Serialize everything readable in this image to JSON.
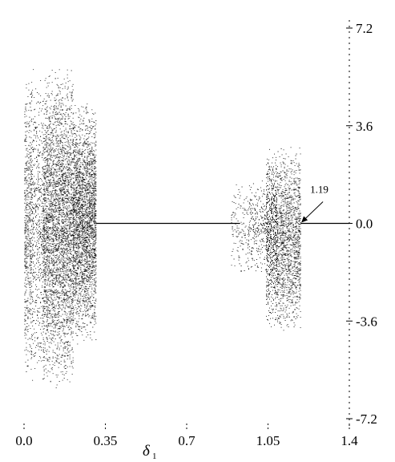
{
  "chart_data": {
    "type": "scatter",
    "title": "",
    "xlabel": "δ",
    "xlabel_subscript": "1",
    "ylabel": "",
    "xlim": [
      0.0,
      1.4
    ],
    "ylim": [
      -7.2,
      7.2
    ],
    "x_ticks": [
      0.0,
      0.35,
      0.7,
      1.05,
      1.4
    ],
    "x_tick_labels": [
      "0.0",
      "0.35",
      "0.7",
      "1.05",
      "1.4"
    ],
    "y_ticks": [
      7.2,
      3.6,
      0.0,
      -3.6,
      -7.2
    ],
    "y_tick_labels": [
      "7.2",
      "3.6",
      "0.0",
      "-3.6",
      "-7.2"
    ],
    "y_axis_side": "right",
    "grid": false,
    "legend": "none",
    "annotations": [
      {
        "text": "1.19",
        "x": 1.19,
        "y": 0.0
      }
    ],
    "series": [
      {
        "color": "#000000",
        "regions": [
          {
            "x_start": 0.0,
            "x_end": 0.03,
            "y_min": -5.9,
            "y_max": 5.6,
            "density": 0.5
          },
          {
            "x_start": 0.03,
            "x_end": 0.08,
            "y_min": -6.0,
            "y_max": 5.8,
            "density": 0.3
          },
          {
            "x_start": 0.08,
            "x_end": 0.21,
            "y_min": -6.2,
            "y_max": 5.8,
            "density": 0.65
          },
          {
            "x_start": 0.21,
            "x_end": 0.31,
            "y_min": -4.5,
            "y_max": 4.5,
            "density": 0.9
          },
          {
            "x_start": 0.31,
            "x_end": 0.93,
            "y_min": 0.0,
            "y_max": 0.0,
            "density": 1.0,
            "kind": "fixed-point"
          },
          {
            "x_start": 0.89,
            "x_end": 0.96,
            "y_min": -2.0,
            "y_max": 1.6,
            "density": 0.15
          },
          {
            "x_start": 0.96,
            "x_end": 1.04,
            "y_min": -2.0,
            "y_max": 1.6,
            "density": 0.3
          },
          {
            "x_start": 1.04,
            "x_end": 1.09,
            "y_min": -3.9,
            "y_max": 2.8,
            "density": 0.75
          },
          {
            "x_start": 1.09,
            "x_end": 1.19,
            "y_min": -4.2,
            "y_max": 2.9,
            "density": 0.6
          },
          {
            "x_start": 1.19,
            "x_end": 1.4,
            "y_min": 0.0,
            "y_max": 0.0,
            "density": 1.0,
            "kind": "fixed-point"
          }
        ]
      }
    ]
  }
}
